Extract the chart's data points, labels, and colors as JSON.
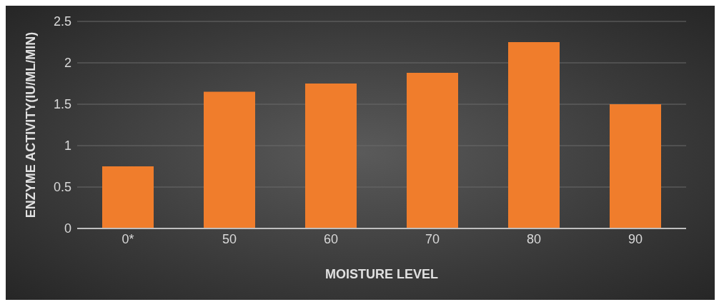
{
  "chart_data": {
    "type": "bar",
    "xlabel": "MOISTURE LEVEL",
    "ylabel": "ENZYME ACTIVITY(IU/ML/MIN)",
    "categories": [
      "0*",
      "50",
      "60",
      "70",
      "80",
      "90"
    ],
    "values": [
      0.75,
      1.65,
      1.75,
      1.88,
      2.25,
      1.5
    ],
    "color": "#f07d2c",
    "ylim": [
      0,
      2.5
    ],
    "yticks": [
      0,
      0.5,
      1,
      1.5,
      2,
      2.5
    ],
    "grid": "y"
  }
}
